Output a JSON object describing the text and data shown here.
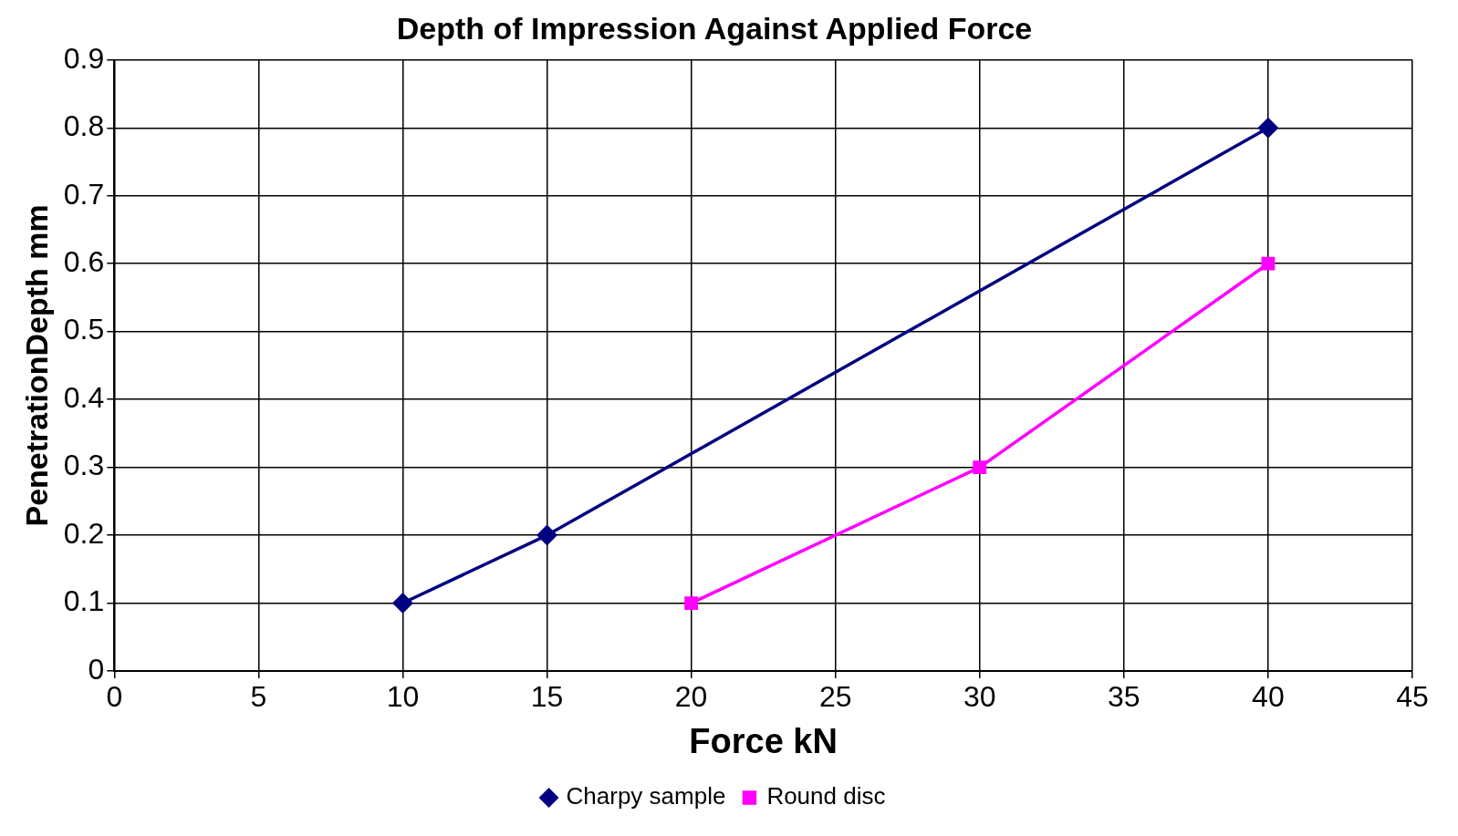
{
  "chart_data": {
    "type": "line",
    "title": "Depth of Impression Against Applied Force",
    "xlabel": "Force kN",
    "ylabel": "PenetrationDepth mm",
    "xlim": [
      0,
      45
    ],
    "xticks": [
      0,
      5,
      10,
      15,
      20,
      25,
      30,
      35,
      40,
      45
    ],
    "ylim": [
      0,
      0.9
    ],
    "yticks": [
      0,
      0.1,
      0.2,
      0.3,
      0.4,
      0.5,
      0.6,
      0.7,
      0.8,
      0.9
    ],
    "grid": true,
    "legend": "bottom",
    "line_style": "solid",
    "series": [
      {
        "name": "Charpy sample",
        "color": "#000080",
        "marker": "diamond",
        "x": [
          10,
          15,
          40
        ],
        "values": [
          0.1,
          0.2,
          0.8
        ]
      },
      {
        "name": "Round disc",
        "color": "#ff00ff",
        "marker": "square",
        "x": [
          20,
          30,
          40
        ],
        "values": [
          0.1,
          0.3,
          0.6
        ]
      }
    ]
  }
}
